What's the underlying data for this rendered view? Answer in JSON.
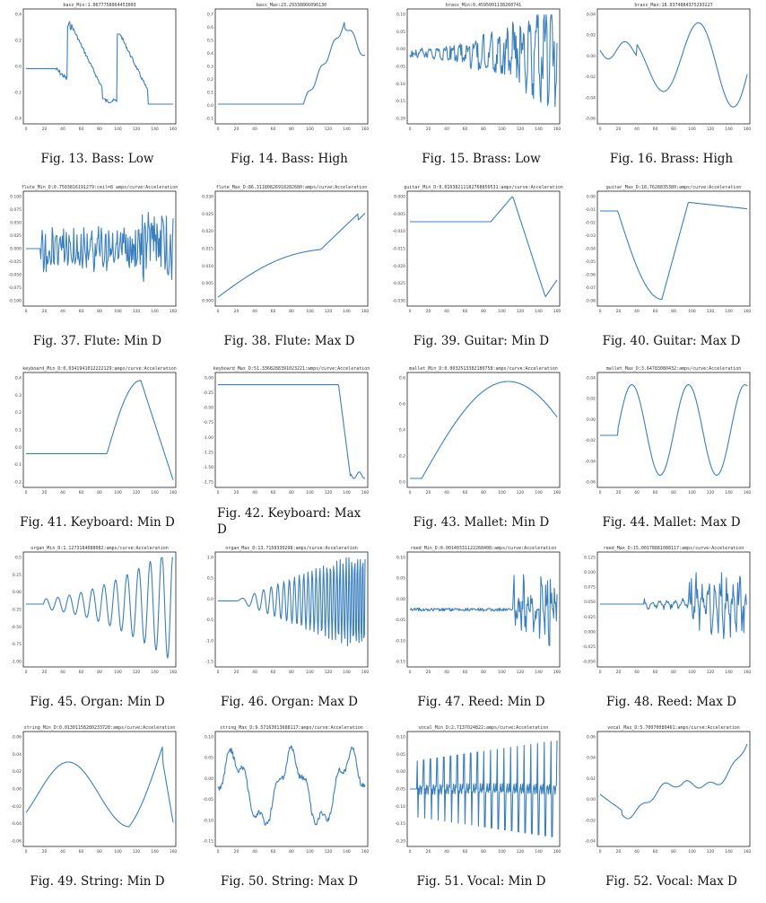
{
  "figures": [
    {
      "title": "bass_Min:1.0677758064453003",
      "caption": "Fig. 13.  Bass: Low",
      "y_ticks": [
        "0.4",
        "0.2",
        "0.0",
        "-0.2",
        "-0.4"
      ],
      "x_ticks": [
        "0",
        "20",
        "40",
        "60",
        "80",
        "100",
        "120",
        "140",
        "160"
      ],
      "shape": "square"
    },
    {
      "title": "bass_Max:23.29338866096130",
      "caption": "Fig. 14.  Bass: High",
      "y_ticks": [
        "0.7",
        "0.6",
        "0.5",
        "0.4",
        "0.3",
        "0.2",
        "0.1",
        "0.0",
        "-0.1"
      ],
      "x_ticks": [
        "0",
        "20",
        "40",
        "60",
        "80",
        "100",
        "120",
        "140",
        "160"
      ],
      "shape": "rise_late"
    },
    {
      "title": "brass_Min:0.4595001138260741",
      "caption": "Fig. 15.  Brass: Low",
      "y_ticks": [
        "0.10",
        "0.05",
        "0.00",
        "-0.05",
        "-0.10",
        "-0.15",
        "-0.20"
      ],
      "x_ticks": [
        "0",
        "20",
        "40",
        "60",
        "80",
        "100",
        "120",
        "140",
        "160"
      ],
      "shape": "noise_grow"
    },
    {
      "title": "brass_Max:18.0374884375293227",
      "caption": "Fig. 16.  Brass: High",
      "y_ticks": [
        "0.04",
        "0.02",
        "0.00",
        "-0.02",
        "-0.04",
        "-0.06"
      ],
      "x_ticks": [
        "0",
        "20",
        "40",
        "60",
        "80",
        "100",
        "120",
        "140",
        "160"
      ],
      "shape": "big_waves"
    },
    {
      "title": "flute_Min_D:0.7503816191279:ceil=8 amps/curve:Acceleration",
      "caption": "Fig. 37.  Flute: Min D",
      "y_ticks": [
        "0.100",
        "0.075",
        "0.050",
        "0.025",
        "0.000",
        "-0.025",
        "-0.050",
        "-0.075",
        "-0.100"
      ],
      "x_ticks": [
        "0",
        "20",
        "40",
        "60",
        "80",
        "100",
        "120",
        "140",
        "160"
      ],
      "shape": "dense_noise"
    },
    {
      "title": "flute_Max_D:86.31180826918282680:amps/curve:Acceleration",
      "caption": "Fig. 38.  Flute: Max D",
      "y_ticks": [
        "0.030",
        "0.025",
        "0.020",
        "0.015",
        "0.010",
        "0.005",
        "0.000"
      ],
      "x_ticks": [
        "0",
        "20",
        "40",
        "60",
        "80",
        "100",
        "120",
        "140",
        "160"
      ],
      "shape": "monotone_rise"
    },
    {
      "title": "guitar_Min_D:0.01038211182768850531:amps/curve:Acceleration",
      "caption": "Fig. 39.  Guitar: Min D",
      "y_ticks": [
        "0.000",
        "-0.005",
        "-0.010",
        "-0.015",
        "-0.020",
        "-0.025",
        "-0.030"
      ],
      "x_ticks": [
        "0",
        "20",
        "40",
        "60",
        "80",
        "100",
        "120",
        "140",
        "160"
      ],
      "shape": "flat_bump_drop"
    },
    {
      "title": "guitar_Max_D:18.7628835380:amps/curve:Acceleration",
      "caption": "Fig. 40.  Guitar: Max D",
      "y_ticks": [
        "0.00",
        "-0.01",
        "-0.02",
        "-0.03",
        "-0.04",
        "-0.05",
        "-0.06",
        "-0.07",
        "-0.08"
      ],
      "x_ticks": [
        "0",
        "20",
        "40",
        "60",
        "80",
        "100",
        "120",
        "140",
        "160"
      ],
      "shape": "dip"
    },
    {
      "title": "keyboard_Min_D:0.0341941012222129:amps/curve:Acceleration",
      "caption": "Fig. 41.  Keyboard: Min D",
      "y_ticks": [
        "0.4",
        "0.3",
        "0.2",
        "0.1",
        "0.0",
        "-0.1",
        "-0.2"
      ],
      "x_ticks": [
        "0",
        "20",
        "40",
        "60",
        "80",
        "100",
        "120",
        "140",
        "160"
      ],
      "shape": "late_peak"
    },
    {
      "title": "keyboard_Max_D:51.3368288391023221:amps/curve:Acceleration",
      "caption": "Fig. 42.  Keyboard:  Max D",
      "y_ticks": [
        "0.00",
        "-0.25",
        "-0.50",
        "-0.75",
        "-1.00",
        "-1.25",
        "-1.50",
        "-1.75"
      ],
      "x_ticks": [
        "0",
        "20",
        "40",
        "60",
        "80",
        "100",
        "120",
        "140",
        "160"
      ],
      "shape": "cliff_drop"
    },
    {
      "title": "mallet_Min_D:0.0032513382180758:amps/curve:Acceleration",
      "caption": "Fig. 43.  Mallet: Min D",
      "y_ticks": [
        "0.8",
        "0.6",
        "0.4",
        "0.2",
        "0.0"
      ],
      "x_ticks": [
        "0",
        "20",
        "40",
        "60",
        "80",
        "100",
        "120",
        "140",
        "160"
      ],
      "shape": "hump"
    },
    {
      "title": "mallet_Max_D:3.64783080432:amps/curve:Acceleration",
      "caption": "Fig. 44.  Mallet: Max D",
      "y_ticks": [
        "0.04",
        "0.02",
        "0.00",
        "-0.02",
        "-0.04",
        "-0.06"
      ],
      "x_ticks": [
        "0",
        "20",
        "40",
        "60",
        "80",
        "100",
        "120",
        "140",
        "160"
      ],
      "shape": "three_peaks"
    },
    {
      "title": "organ_Min_D:1.1273184088082:amps/curve:Acceleration",
      "caption": "Fig. 45.  Organ: Min D",
      "y_ticks": [
        "0.5",
        "0.25",
        "0.00",
        "-0.25",
        "-0.50",
        "-0.75",
        "-1.00"
      ],
      "x_ticks": [
        "0",
        "20",
        "40",
        "60",
        "80",
        "100",
        "120",
        "140",
        "160"
      ],
      "shape": "grow_osc"
    },
    {
      "title": "organ_Max_D:13.7158330298:amps/curve:Acceleration",
      "caption": "Fig. 46.  Organ: Max D",
      "y_ticks": [
        "1.0",
        "0.5",
        "0.0",
        "-0.5",
        "-1.0",
        "-1.5"
      ],
      "x_ticks": [
        "0",
        "20",
        "40",
        "60",
        "80",
        "100",
        "120",
        "140",
        "160"
      ],
      "shape": "chirp_grow"
    },
    {
      "title": "reed_Min_D:0.00140331122268408:amps/curve:Acceleration",
      "caption": "Fig. 47.  Reed: Min D",
      "y_ticks": [
        "0.10",
        "0.05",
        "0.00",
        "-0.05",
        "-0.10",
        "-0.15"
      ],
      "x_ticks": [
        "0",
        "20",
        "40",
        "60",
        "80",
        "100",
        "120",
        "140",
        "160"
      ],
      "shape": "late_burst"
    },
    {
      "title": "reed_Max_D:15.00178881088117:amps/curve:Acceleration",
      "caption": "Fig. 48.  Reed: Max D",
      "y_ticks": [
        "0.125",
        "0.100",
        "0.075",
        "0.050",
        "0.025",
        "0.000",
        "-0.025",
        "-0.050"
      ],
      "x_ticks": [
        "0",
        "20",
        "40",
        "60",
        "80",
        "100",
        "120",
        "140",
        "160"
      ],
      "shape": "mid_burst"
    },
    {
      "title": "string_Min_D:0.01301158280233728:amps/curve:Acceleration",
      "caption": "Fig. 49.  String: Min D",
      "y_ticks": [
        "0.06",
        "0.04",
        "0.02",
        "0.00",
        "-0.02",
        "-0.04",
        "-0.06"
      ],
      "x_ticks": [
        "0",
        "20",
        "40",
        "60",
        "80",
        "100",
        "120",
        "140",
        "160"
      ],
      "shape": "wave_up"
    },
    {
      "title": "string_Max_D:9.57163013688117:amps/curve:Acceleration",
      "caption": "Fig. 50.  String: Max D",
      "y_ticks": [
        "0.10",
        "0.05",
        "0.00",
        "-0.05",
        "-0.10",
        "-0.15"
      ],
      "x_ticks": [
        "0",
        "20",
        "40",
        "60",
        "80",
        "100",
        "120",
        "140",
        "160"
      ],
      "shape": "rough_waves"
    },
    {
      "title": "vocal_Min_D:2.7137024822:amps/curve:Acceleration",
      "caption": "Fig. 51.  Vocal: Min D",
      "y_ticks": [
        "0.10",
        "0.05",
        "0.00",
        "-0.05",
        "-0.10",
        "-0.15",
        "-0.20"
      ],
      "x_ticks": [
        "0",
        "20",
        "40",
        "60",
        "80",
        "100",
        "120",
        "140",
        "160"
      ],
      "shape": "spikes"
    },
    {
      "title": "vocal_Max_D:5.70070080461:amps/curve:Acceleration",
      "caption": "Fig. 52.  Vocal: Max D",
      "y_ticks": [
        "0.06",
        "0.04",
        "0.02",
        "0.00",
        "-0.02",
        "-0.04"
      ],
      "x_ticks": [
        "0",
        "20",
        "40",
        "60",
        "80",
        "100",
        "120",
        "140",
        "160"
      ],
      "shape": "wobble_rise"
    }
  ],
  "line_color": "#3a7fbd"
}
